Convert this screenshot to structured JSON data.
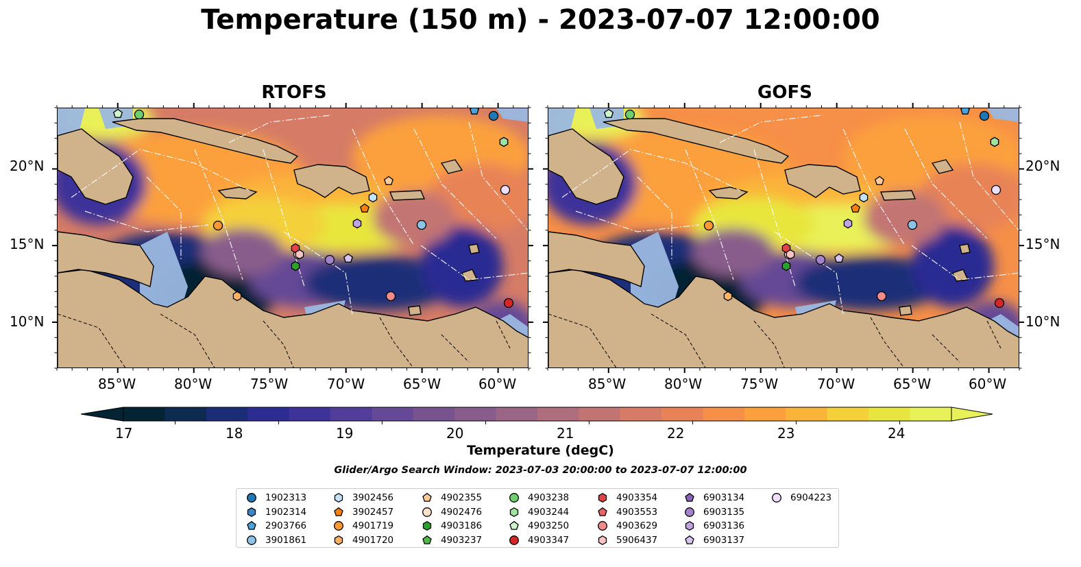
{
  "title": "Temperature (150 m) - 2023-07-07 12:00:00",
  "panels": [
    {
      "title": "RTOFS",
      "model": "rtofs"
    },
    {
      "title": "GOFS",
      "model": "gofs"
    }
  ],
  "axes": {
    "lon_ticks": [
      "85°W",
      "80°W",
      "75°W",
      "70°W",
      "65°W",
      "60°W"
    ],
    "lat_ticks": [
      "20°N",
      "15°N",
      "10°N"
    ],
    "lon_range": [
      -89,
      -58
    ],
    "lat_range": [
      7,
      24
    ]
  },
  "colorbar": {
    "label": "Temperature (degC)",
    "ticks": [
      "17",
      "18",
      "19",
      "20",
      "21",
      "22",
      "23",
      "24"
    ],
    "vmin": 16.5,
    "vmax": 24.5,
    "step": 0.5,
    "extend": "both",
    "colors": [
      "#042333",
      "#0d2a50",
      "#1b2d77",
      "#2c2c93",
      "#3e3399",
      "#523d9a",
      "#654896",
      "#77538f",
      "#895d8b",
      "#9b6685",
      "#ae6e7e",
      "#c27473",
      "#d67c66",
      "#e88357",
      "#f68f47",
      "#fca03d",
      "#fbb43a",
      "#f4d03a",
      "#e8e63e",
      "#e9f159"
    ]
  },
  "search_window": "Glider/Argo Search Window: 2023-07-03 20:00:00 to 2023-07-07 12:00:00",
  "legend": [
    {
      "id": "1902313",
      "marker": "circle",
      "color": "#1f77b4"
    },
    {
      "id": "1902314",
      "marker": "hexagon",
      "color": "#3d86c6"
    },
    {
      "id": "2903766",
      "marker": "pentagon",
      "color": "#4aa3d8"
    },
    {
      "id": "3901861",
      "marker": "circle",
      "color": "#8ec3e8"
    },
    {
      "id": "3902456",
      "marker": "hexagon",
      "color": "#c3e3f7"
    },
    {
      "id": "3902457",
      "marker": "pentagon",
      "color": "#ff7f0e"
    },
    {
      "id": "4901719",
      "marker": "circle",
      "color": "#ff9933"
    },
    {
      "id": "4901720",
      "marker": "hexagon",
      "color": "#ffb266"
    },
    {
      "id": "4902355",
      "marker": "pentagon",
      "color": "#ffcc99"
    },
    {
      "id": "4902476",
      "marker": "circle",
      "color": "#ffe3c8"
    },
    {
      "id": "4903186",
      "marker": "hexagon",
      "color": "#2ca02c"
    },
    {
      "id": "4903237",
      "marker": "pentagon",
      "color": "#4cbb4c"
    },
    {
      "id": "4903238",
      "marker": "circle",
      "color": "#6fcf6f"
    },
    {
      "id": "4903244",
      "marker": "hexagon",
      "color": "#9fe39f"
    },
    {
      "id": "4903250",
      "marker": "pentagon",
      "color": "#cef5ce"
    },
    {
      "id": "4903347",
      "marker": "circle",
      "color": "#d62728"
    },
    {
      "id": "4903354",
      "marker": "hexagon",
      "color": "#e04446"
    },
    {
      "id": "4903553",
      "marker": "pentagon",
      "color": "#ea6466"
    },
    {
      "id": "4903629",
      "marker": "circle",
      "color": "#f28c8c"
    },
    {
      "id": "5906437",
      "marker": "hexagon",
      "color": "#f9c4c4"
    },
    {
      "id": "6903134",
      "marker": "pentagon",
      "color": "#8a63b8"
    },
    {
      "id": "6903135",
      "marker": "circle",
      "color": "#a583cc"
    },
    {
      "id": "6903136",
      "marker": "hexagon",
      "color": "#c0a3e0"
    },
    {
      "id": "6903137",
      "marker": "pentagon",
      "color": "#d8c4f0"
    },
    {
      "id": "6904223",
      "marker": "circle",
      "color": "#eee0fb"
    }
  ],
  "map_colors": {
    "land": "#d0b38a",
    "shelf": "#9ab8e0",
    "deep_cold": "#042333"
  }
}
